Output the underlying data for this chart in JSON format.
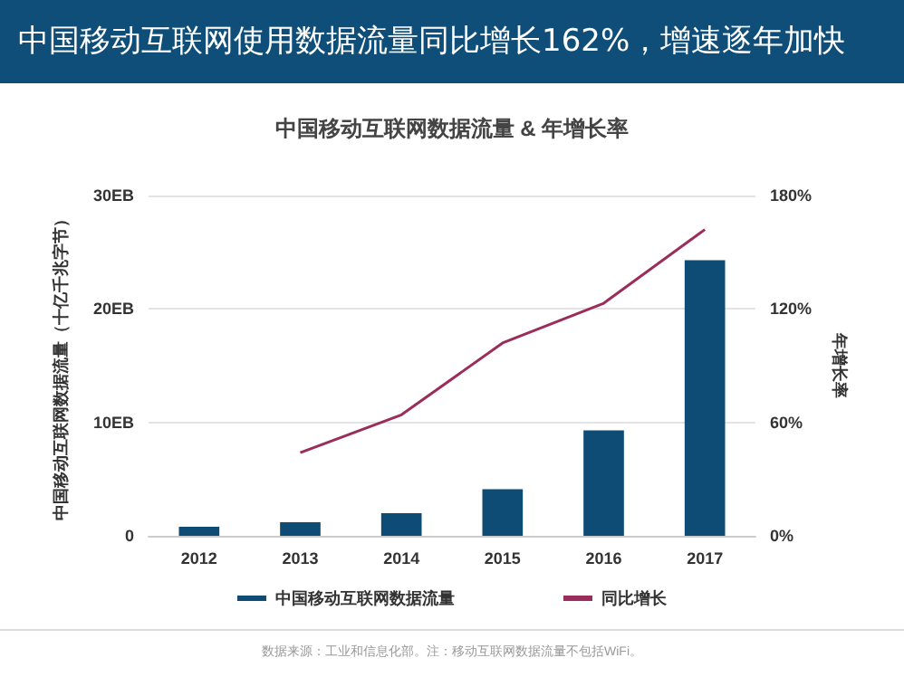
{
  "chart_data": {
    "type": "bar",
    "title": "中国移动互联网使用数据流量同比增长162%，增速逐年加快",
    "subtitle": "中国移动互联网数据流量 & 年增长率",
    "categories": [
      "2012",
      "2013",
      "2014",
      "2015",
      "2016",
      "2017"
    ],
    "ylabel": "中国移动互联网数据流量（十亿千兆字节）",
    "y2label": "年增长率",
    "series": [
      {
        "name": "中国移动互联网数据流量",
        "color": "#0f4c75",
        "values": [
          0.8,
          1.2,
          2.0,
          4.1,
          9.3,
          24.3
        ]
      },
      {
        "name": "同比增长",
        "type": "line",
        "axis": "y2",
        "color": "#9b2d5a",
        "values": [
          null,
          44,
          64,
          102,
          123,
          162
        ]
      }
    ],
    "ylim": [
      0,
      30
    ],
    "yticks": [
      {
        "value": 0,
        "label": "0"
      },
      {
        "value": 10,
        "label": "10EB"
      },
      {
        "value": 20,
        "label": "20EB"
      },
      {
        "value": 30,
        "label": "30EB"
      }
    ],
    "y2lim": [
      0,
      180
    ],
    "y2ticks": [
      {
        "value": 0,
        "label": "0%"
      },
      {
        "value": 60,
        "label": "60%"
      },
      {
        "value": 120,
        "label": "120%"
      },
      {
        "value": 180,
        "label": "180%"
      }
    ],
    "grid": "y",
    "legend": "bottom",
    "marker": "none",
    "annotations": [
      "数据来源：工业和信息化部。注：移动互联网数据流量不包括WiFi。"
    ]
  }
}
